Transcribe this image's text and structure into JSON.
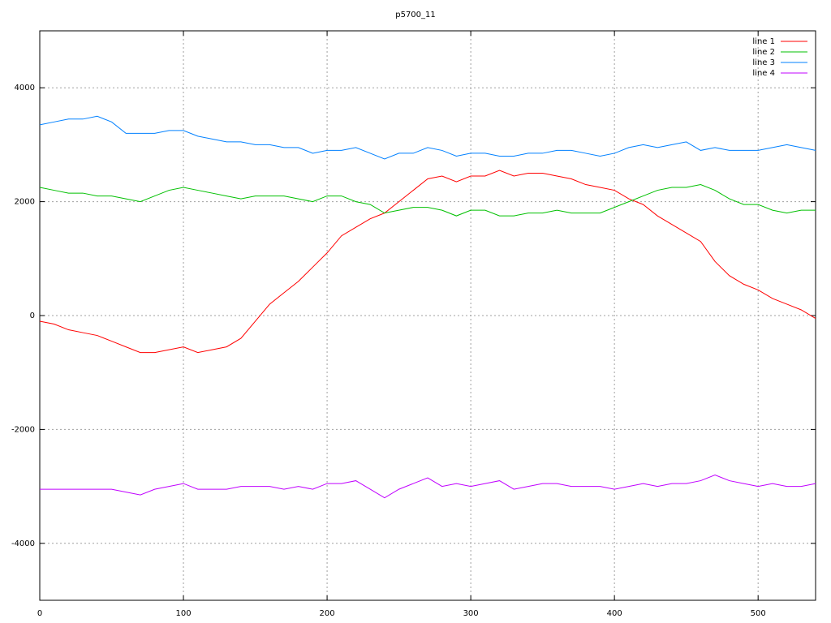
{
  "chart_data": {
    "type": "line",
    "title": "p5700_11",
    "x": [
      0,
      10,
      20,
      30,
      40,
      50,
      60,
      70,
      80,
      90,
      100,
      110,
      120,
      130,
      140,
      150,
      160,
      170,
      180,
      190,
      200,
      210,
      220,
      230,
      240,
      250,
      260,
      270,
      280,
      290,
      300,
      310,
      320,
      330,
      340,
      350,
      360,
      370,
      380,
      390,
      400,
      410,
      420,
      430,
      440,
      450,
      460,
      470,
      480,
      490,
      500,
      510,
      520,
      530,
      540
    ],
    "series": [
      {
        "name": "line 1",
        "color": "#ff0000",
        "values": [
          -100,
          -150,
          -250,
          -300,
          -350,
          -450,
          -550,
          -650,
          -650,
          -600,
          -550,
          -650,
          -600,
          -550,
          -400,
          -100,
          200,
          400,
          600,
          850,
          1100,
          1400,
          1550,
          1700,
          1800,
          2000,
          2200,
          2400,
          2450,
          2350,
          2450,
          2450,
          2550,
          2450,
          2500,
          2500,
          2450,
          2400,
          2300,
          2250,
          2200,
          2050,
          1950,
          1750,
          1600,
          1450,
          1300,
          950,
          700,
          550,
          450,
          300,
          200,
          100,
          -50
        ]
      },
      {
        "name": "line 2",
        "color": "#00c000",
        "values": [
          2250,
          2200,
          2150,
          2150,
          2100,
          2100,
          2050,
          2000,
          2100,
          2200,
          2250,
          2200,
          2150,
          2100,
          2050,
          2100,
          2100,
          2100,
          2050,
          2000,
          2100,
          2100,
          2000,
          1950,
          1800,
          1850,
          1900,
          1900,
          1850,
          1750,
          1850,
          1850,
          1750,
          1750,
          1800,
          1800,
          1850,
          1800,
          1800,
          1800,
          1900,
          2000,
          2100,
          2200,
          2250,
          2250,
          2300,
          2200,
          2050,
          1950,
          1950,
          1850,
          1800,
          1850,
          1850
        ]
      },
      {
        "name": "line 3",
        "color": "#0080ff",
        "values": [
          3350,
          3400,
          3450,
          3450,
          3500,
          3400,
          3200,
          3200,
          3200,
          3250,
          3250,
          3150,
          3100,
          3050,
          3050,
          3000,
          3000,
          2950,
          2950,
          2850,
          2900,
          2900,
          2950,
          2850,
          2750,
          2850,
          2850,
          2950,
          2900,
          2800,
          2850,
          2850,
          2800,
          2800,
          2850,
          2850,
          2900,
          2900,
          2850,
          2800,
          2850,
          2950,
          3000,
          2950,
          3000,
          3050,
          2900,
          2950,
          2900,
          2900,
          2900,
          2950,
          3000,
          2950,
          2900
        ]
      },
      {
        "name": "line 4",
        "color": "#c000ff",
        "values": [
          -3050,
          -3050,
          -3050,
          -3050,
          -3050,
          -3050,
          -3100,
          -3150,
          -3050,
          -3000,
          -2950,
          -3050,
          -3050,
          -3050,
          -3000,
          -3000,
          -3000,
          -3050,
          -3000,
          -3050,
          -2950,
          -2950,
          -2900,
          -3050,
          -3200,
          -3050,
          -2950,
          -2850,
          -3000,
          -2950,
          -3000,
          -2950,
          -2900,
          -3050,
          -3000,
          -2950,
          -2950,
          -3000,
          -3000,
          -3000,
          -3050,
          -3000,
          -2950,
          -3000,
          -2950,
          -2950,
          -2900,
          -2800,
          -2900,
          -2950,
          -3000,
          -2950,
          -3000,
          -3000,
          -2950
        ]
      }
    ],
    "xlim": [
      0,
      540
    ],
    "xticks": [
      0,
      100,
      200,
      300,
      400,
      500
    ],
    "ylim": [
      -5000,
      5000
    ],
    "yticks": [
      -4000,
      -2000,
      0,
      2000,
      4000
    ],
    "grid": true,
    "legend": "top-right"
  }
}
